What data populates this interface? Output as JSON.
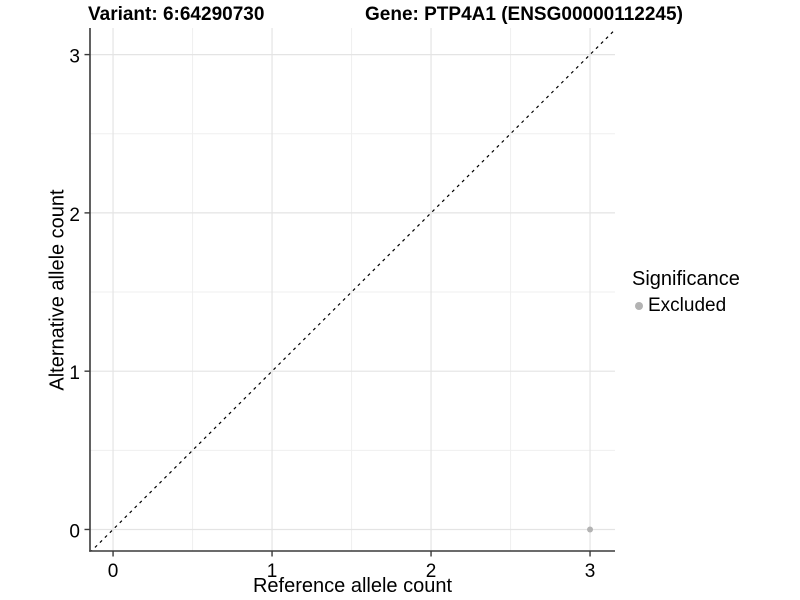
{
  "chart_data": {
    "type": "scatter",
    "title_left": "Variant: 6:64290730",
    "title_right": "Gene: PTP4A1 (ENSG00000112245)",
    "xlabel": "Reference allele count",
    "ylabel": "Alternative allele count",
    "x_ticks": [
      0,
      1,
      2,
      3
    ],
    "y_ticks": [
      0,
      1,
      2,
      3
    ],
    "xlim": [
      -0.145,
      3.157
    ],
    "ylim": [
      -0.136,
      3.168
    ],
    "grid": {
      "major": true,
      "minor": true
    },
    "identity_line": {
      "shown": true,
      "style": "dashed"
    },
    "points": [
      {
        "x": 3,
        "y": 0,
        "series": "Excluded"
      }
    ],
    "legend": {
      "title": "Significance",
      "position": "right",
      "entries": [
        {
          "label": "Excluded",
          "color": "#b3b3b3"
        }
      ]
    },
    "colors": {
      "point": "#b3b3b3",
      "grid_major": "#e4e4e4",
      "grid_minor": "#efefef",
      "axis": "#3a3a3a",
      "identity_line": "#000000",
      "text": "#000000"
    }
  }
}
